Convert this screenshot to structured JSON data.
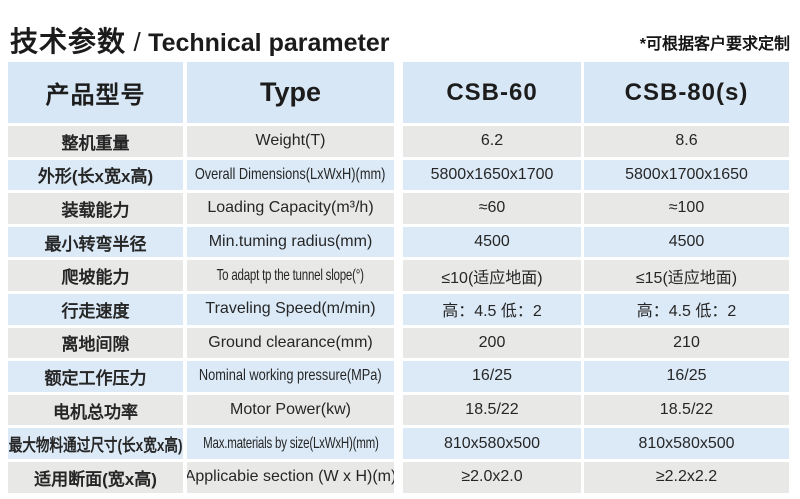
{
  "header": {
    "title_cn": "技术参数",
    "title_sep": "/",
    "title_en": "Technical parameter",
    "note": "*可根据客户要求定制"
  },
  "colors": {
    "header_blue": "#d7e7f5",
    "row_blue": "#dceaf7",
    "row_gray": "#e8e8e7",
    "text": "#262626"
  },
  "table": {
    "headers": {
      "col1": "产品型号",
      "col2": "Type",
      "col3": "CSB-60",
      "col4": "CSB-80(s)"
    },
    "rows": [
      {
        "cn": "整机重量",
        "en": "Weight(T)",
        "v1": "6.2",
        "v2": "8.6"
      },
      {
        "cn": "外形(长x宽x高)",
        "en": "Overall Dimensions(LxWxH)(mm)",
        "v1": "5800x1650x1700",
        "v2": "5800x1700x1650"
      },
      {
        "cn": "装载能力",
        "en": "Loading Capacity(m³/h)",
        "v1": "≈60",
        "v2": "≈100"
      },
      {
        "cn": "最小转弯半径",
        "en": "Min.tuming radius(mm)",
        "v1": "4500",
        "v2": "4500"
      },
      {
        "cn": "爬坡能力",
        "en": "To adapt tp the tunnel slope(°)",
        "v1": "≤10(适应地面)",
        "v2": "≤15(适应地面)"
      },
      {
        "cn": "行走速度",
        "en": "Traveling Speed(m/min)",
        "v1": "高：4.5 低：2",
        "v2": "高：4.5 低：2"
      },
      {
        "cn": "离地间隙",
        "en": "Ground clearance(mm)",
        "v1": "200",
        "v2": "210"
      },
      {
        "cn": "额定工作压力",
        "en": "Nominal working pressure(MPa)",
        "v1": "16/25",
        "v2": "16/25"
      },
      {
        "cn": "电机总功率",
        "en": "Motor Power(kw)",
        "v1": "18.5/22",
        "v2": "18.5/22"
      },
      {
        "cn": "最大物料通过尺寸(长x宽x高)",
        "en": "Max.materials by size(LxWxH)(mm)",
        "v1": "810x580x500",
        "v2": "810x580x500"
      },
      {
        "cn": "适用断面(宽x高)",
        "en": "Applicabie section (W x H)(m)",
        "v1": "≥2.0x2.0",
        "v2": "≥2.2x2.2"
      }
    ]
  }
}
